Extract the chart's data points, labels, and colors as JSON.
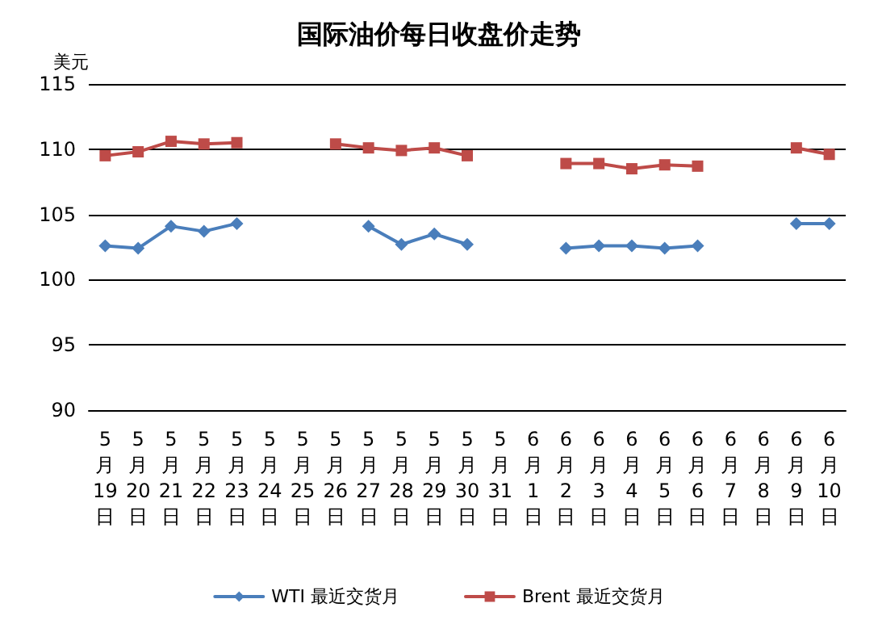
{
  "chart_data": {
    "type": "line",
    "title": "国际油价每日收盘价走势",
    "ylabel": "美元",
    "categories": [
      "5月19日",
      "5月20日",
      "5月21日",
      "5月22日",
      "5月23日",
      "5月24日",
      "5月25日",
      "5月26日",
      "5月27日",
      "5月28日",
      "5月29日",
      "5月30日",
      "5月31日",
      "6月1日",
      "6月2日",
      "6月3日",
      "6月4日",
      "6月5日",
      "6月6日",
      "6月7日",
      "6月8日",
      "6月9日",
      "6月10日"
    ],
    "series": [
      {
        "name": "WTI 最近交货月",
        "color": "#4a7ebb",
        "marker": "diamond",
        "values": [
          102.6,
          102.4,
          104.1,
          103.7,
          104.3,
          null,
          null,
          null,
          104.1,
          102.7,
          103.5,
          102.7,
          null,
          null,
          102.4,
          102.6,
          102.6,
          102.4,
          102.6,
          null,
          null,
          104.3,
          104.3
        ]
      },
      {
        "name": "Brent 最近交货月",
        "color": "#be4b48",
        "marker": "square",
        "values": [
          109.5,
          109.8,
          110.6,
          110.4,
          110.5,
          null,
          null,
          110.4,
          110.1,
          109.9,
          110.1,
          109.5,
          null,
          null,
          108.9,
          108.9,
          108.5,
          108.8,
          108.7,
          null,
          null,
          110.1,
          109.6
        ]
      }
    ],
    "ylim": [
      90,
      115
    ],
    "yticks": [
      90,
      95,
      100,
      105,
      110,
      115
    ],
    "grid": "y",
    "legend": "bottom",
    "line_style": "solid"
  }
}
